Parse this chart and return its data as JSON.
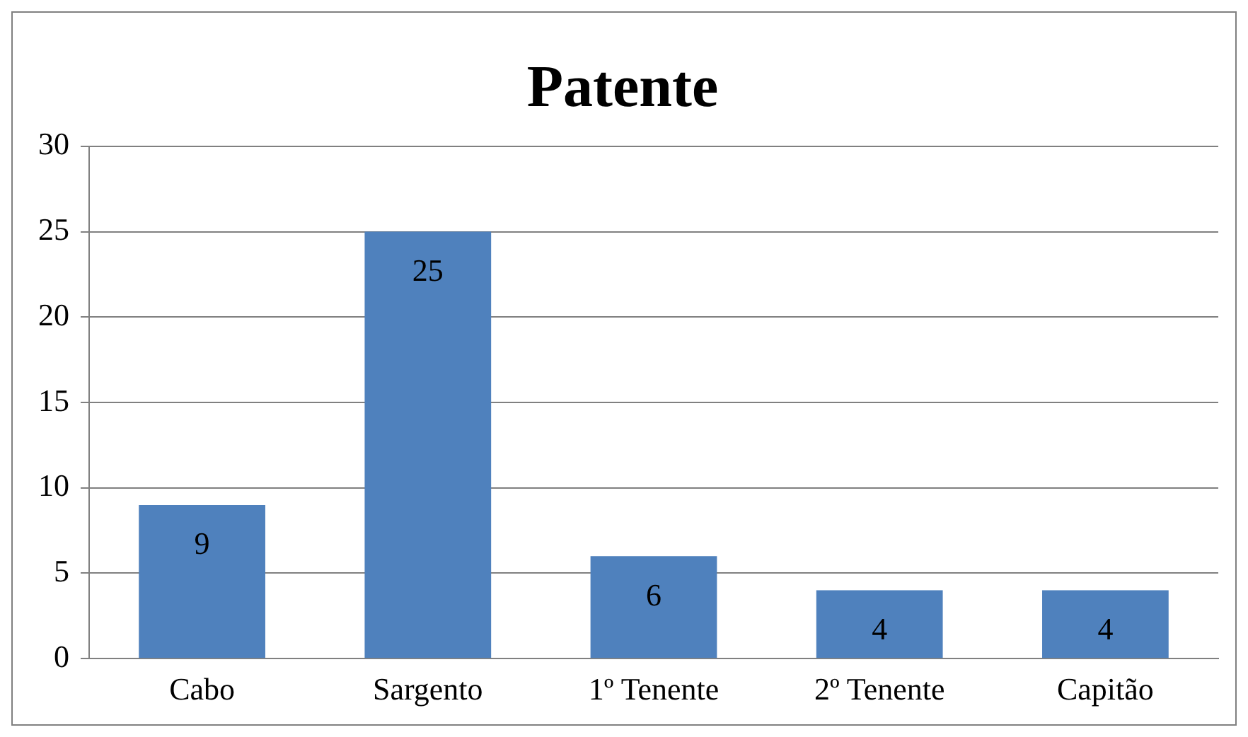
{
  "chart_data": {
    "type": "bar",
    "title": "Patente",
    "categories": [
      "Cabo",
      "Sargento",
      "1º Tenente",
      "2º Tenente",
      "Capitão"
    ],
    "values": [
      9,
      25,
      6,
      4,
      4
    ],
    "color": "#4f81bd",
    "ylim": [
      0,
      30
    ],
    "yticks": [
      0,
      5,
      10,
      15,
      20,
      25,
      30
    ],
    "grid": "y",
    "data_labels": true,
    "legend": false
  }
}
